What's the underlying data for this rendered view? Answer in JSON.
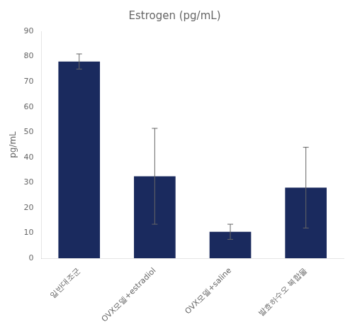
{
  "chart_data": {
    "type": "bar",
    "title": "Estrogen (pg/mL)",
    "ylabel": "pg/mL",
    "categories": [
      "일반대조군",
      "OVX모델+estradiol",
      "OVX모델+saline",
      "발효하수오 복합물"
    ],
    "values": [
      78,
      32.5,
      10.5,
      28
    ],
    "errors": [
      3,
      19,
      3,
      16
    ],
    "color": "#1a2a5e",
    "ylim": [
      0,
      90
    ],
    "yticks": [
      0,
      10,
      20,
      30,
      40,
      50,
      60,
      70,
      80,
      90
    ],
    "grid": false
  }
}
